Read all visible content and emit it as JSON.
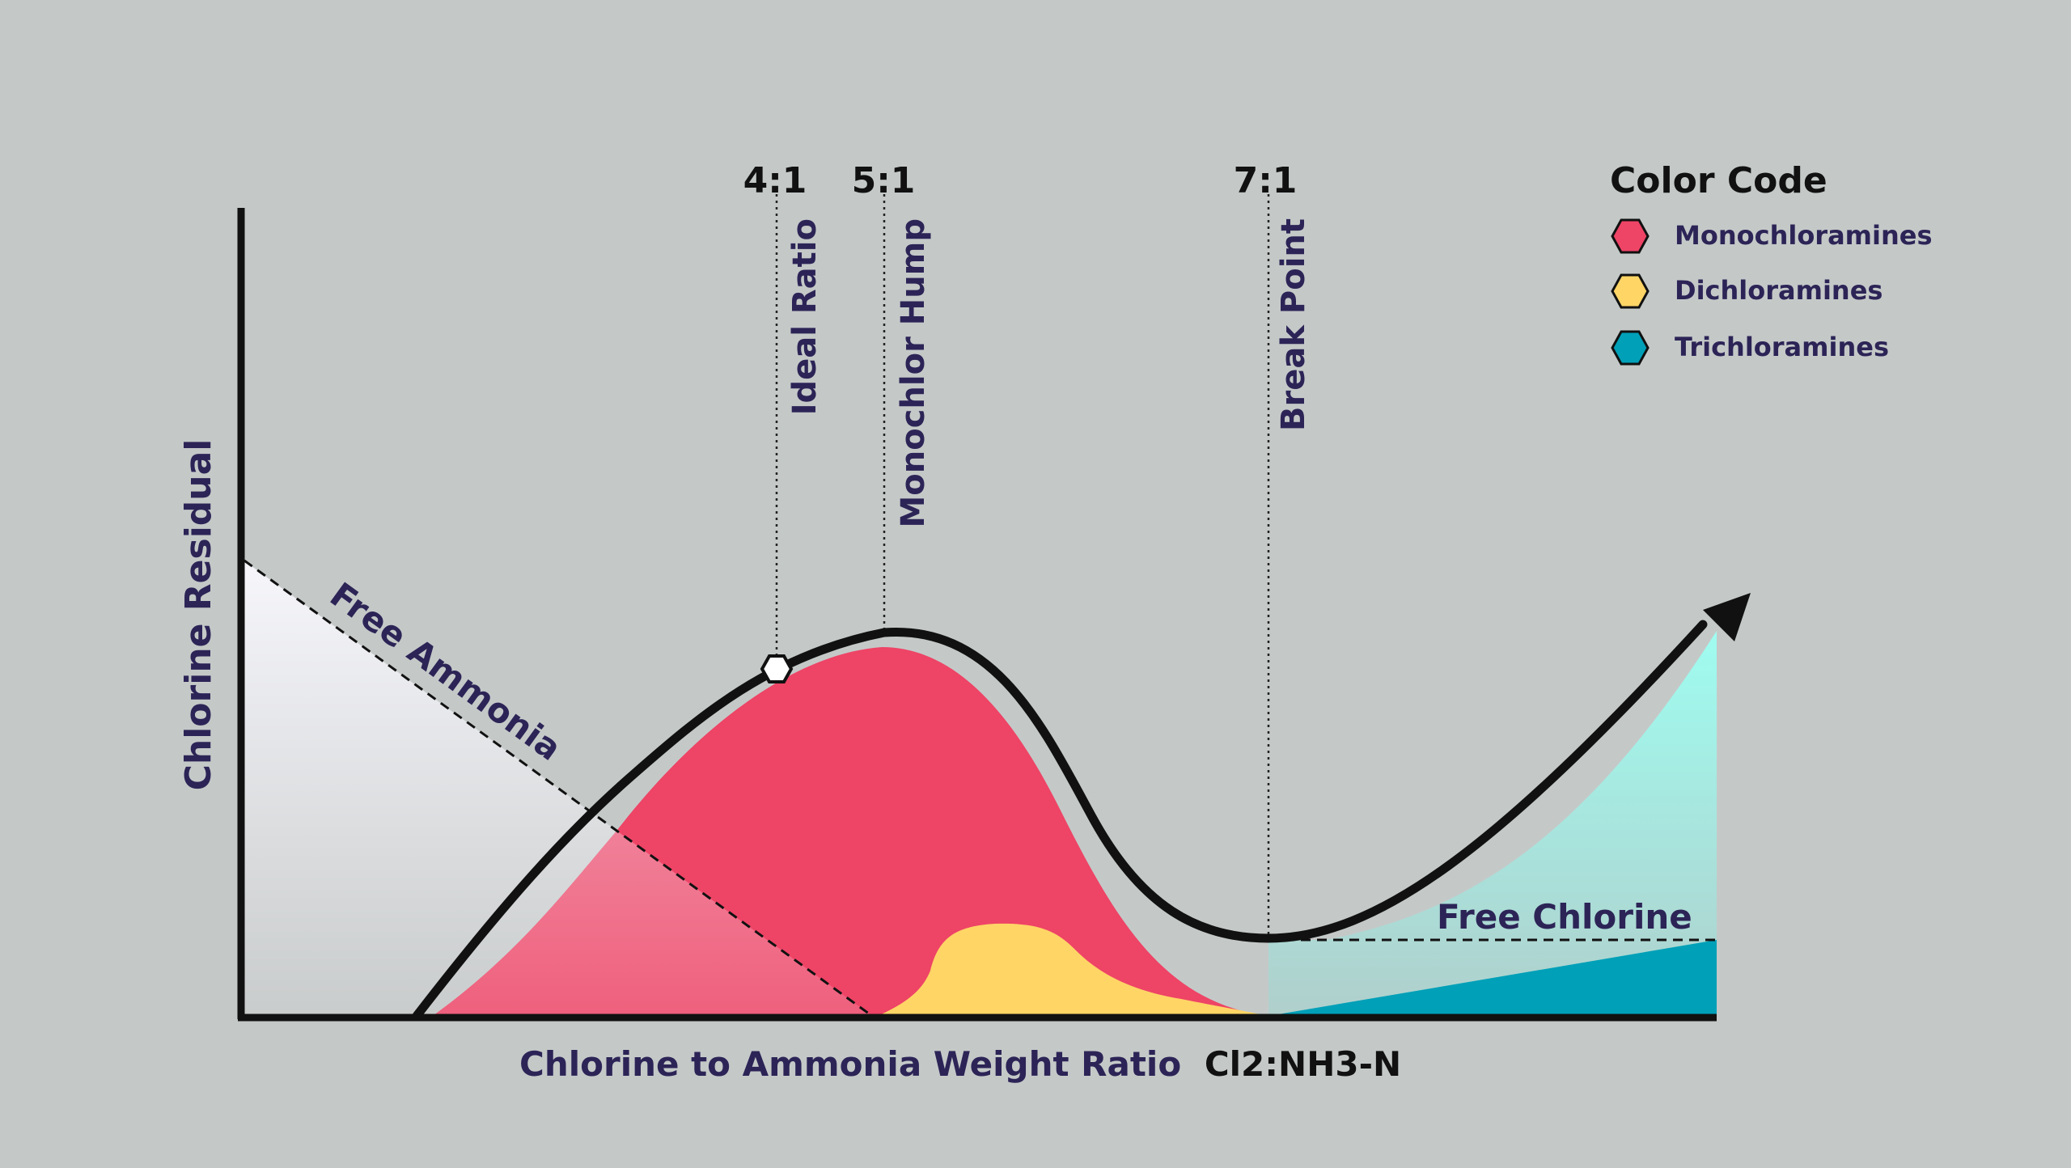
{
  "diagram": {
    "y_axis_label": "Chlorine Residual",
    "x_axis_label_main": "Chlorine to Ammonia Weight Ratio",
    "x_axis_label_formula": "Cl2:NH3-N",
    "markers": [
      {
        "ratio": "4:1",
        "label": "Ideal Ratio"
      },
      {
        "ratio": "5:1",
        "label": "Monochlor Hump"
      },
      {
        "ratio": "7:1",
        "label": "Break Point"
      }
    ],
    "region_labels": {
      "free_ammonia": "Free Ammonia",
      "free_chlorine": "Free Chlorine"
    },
    "legend": {
      "title": "Color Code",
      "items": [
        {
          "label": "Monochloramines",
          "color": "#ee4466"
        },
        {
          "label": "Dichloramines",
          "color": "#ffd566"
        },
        {
          "label": "Trichloramines",
          "color": "#00a0b8"
        }
      ]
    },
    "colors": {
      "background": "#c4c9c8",
      "text_purple": "#2c2456",
      "curve": "#111111",
      "free_ammonia_fill_top": "#f6f6fb",
      "free_ammonia_fill_bottom": "#c9cccc",
      "free_chlorine_fill_top": "#9ffcf0",
      "free_chlorine_fill_bottom": "#b0cfcc"
    }
  }
}
